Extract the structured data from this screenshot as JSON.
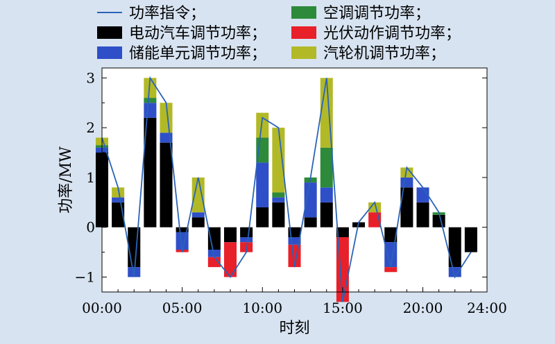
{
  "chart_data": {
    "type": "bar",
    "stacked": true,
    "xlabel": "时刻",
    "ylabel": "功率/MW",
    "ylim": [
      -1.3,
      3.2
    ],
    "yticks": [
      -1,
      0,
      1,
      2,
      3
    ],
    "ytick_labels": [
      "−1",
      "0",
      "1",
      "2",
      "3"
    ],
    "xlim": [
      0,
      24
    ],
    "xticks": [
      0,
      5,
      10,
      15,
      20,
      24
    ],
    "xtick_labels": [
      "00:00",
      "05:00",
      "10:00",
      "15:00",
      "20:00",
      "24:00"
    ],
    "hours": [
      0,
      1,
      2,
      3,
      4,
      5,
      6,
      7,
      8,
      9,
      10,
      11,
      12,
      13,
      14,
      15,
      16,
      17,
      18,
      19,
      20,
      21,
      22,
      23
    ],
    "series": [
      {
        "name": "电动汽车调节功率；",
        "color": "#000000",
        "values": [
          1.5,
          0.5,
          -0.8,
          2.2,
          1.7,
          -0.1,
          0.2,
          -0.45,
          -0.3,
          -0.2,
          0.4,
          0.5,
          -0.2,
          0.2,
          0.5,
          -0.2,
          0.1,
          0,
          -0.3,
          0.8,
          0.5,
          0.25,
          -0.8,
          -0.5
        ]
      },
      {
        "name": "储能单元调节功率；",
        "color": "#2f4fc8",
        "values": [
          0.1,
          0.1,
          -0.2,
          0.3,
          0.2,
          -0.35,
          0.1,
          -0.15,
          0,
          -0.1,
          0.9,
          0.1,
          -0.15,
          0.7,
          0.3,
          0,
          0,
          0,
          -0.5,
          0.2,
          0.3,
          0,
          -0.2,
          0
        ]
      },
      {
        "name": "空调调节功率；",
        "color": "#2d8a3a",
        "values": [
          0.05,
          0,
          0,
          0.1,
          0,
          0,
          0,
          0,
          0,
          0,
          0.5,
          0.1,
          0,
          0.1,
          0.8,
          0,
          0,
          0,
          0,
          0,
          0,
          0.05,
          0,
          0
        ]
      },
      {
        "name": "光伏动作调节功率；",
        "color": "#e8202a",
        "values": [
          0,
          0,
          0,
          0,
          0,
          -0.05,
          0,
          -0.2,
          -0.7,
          -0.2,
          0,
          0,
          -0.45,
          0,
          0,
          -1.3,
          0,
          0.3,
          -0.1,
          0,
          0,
          0,
          0,
          0
        ]
      },
      {
        "name": "汽轮机调节功率；",
        "color": "#b2b926",
        "values": [
          0.15,
          0.2,
          0,
          0.4,
          0.6,
          0,
          0.7,
          0,
          0,
          0,
          0.5,
          1.3,
          0,
          0,
          1.4,
          0,
          0,
          0.2,
          0,
          0.2,
          0,
          0,
          0,
          0
        ]
      }
    ],
    "line": {
      "name": "功率指令；",
      "color": "#2a63b6",
      "values": [
        1.8,
        0.8,
        -1.0,
        3.0,
        2.5,
        -0.5,
        1.0,
        -0.6,
        -1.0,
        -0.5,
        2.2,
        2.0,
        -0.8,
        1.0,
        3.0,
        -1.5,
        0.1,
        0.5,
        -0.8,
        1.2,
        0.8,
        0.3,
        -1.0,
        -0.5
      ]
    },
    "legend": {
      "position": "top",
      "columns": 2
    }
  }
}
